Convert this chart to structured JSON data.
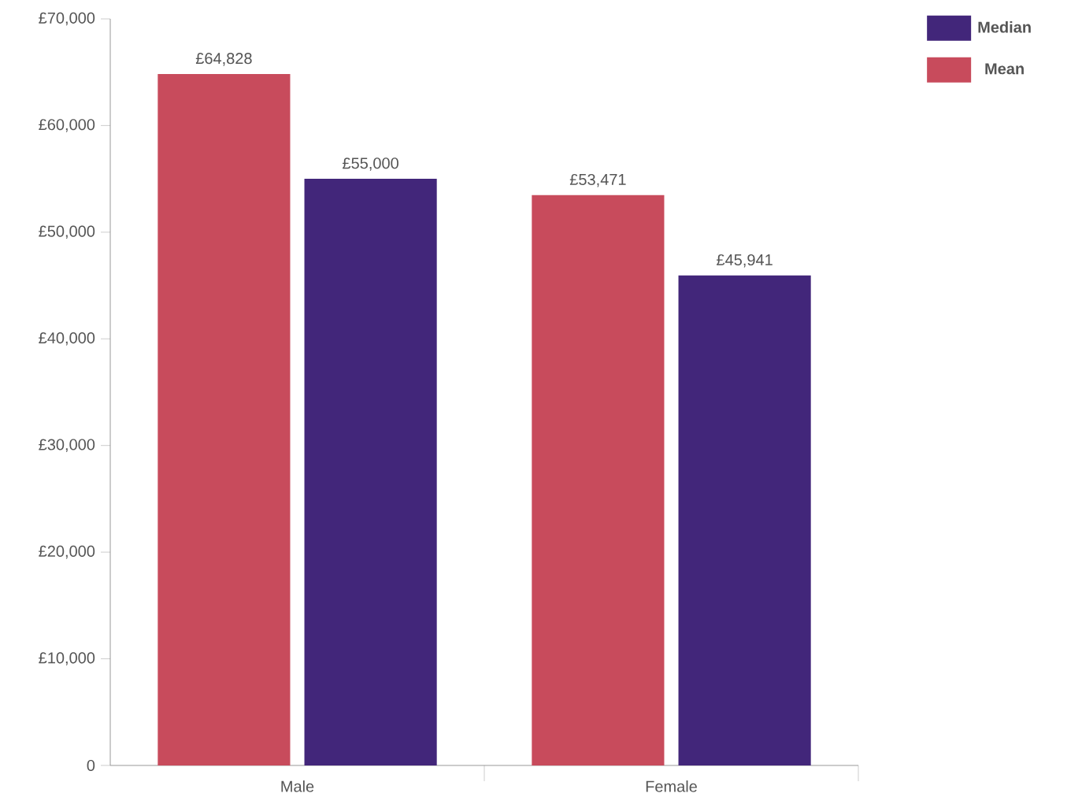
{
  "chart_data": {
    "type": "bar",
    "categories": [
      "Male",
      "Female"
    ],
    "series": [
      {
        "name": "Mean",
        "color": "#c84b5c",
        "values": [
          64828,
          53471
        ],
        "value_labels": [
          "£64,828",
          "£53,471"
        ]
      },
      {
        "name": "Median",
        "color": "#42267a",
        "values": [
          55000,
          45941
        ],
        "value_labels": [
          "£55,000",
          "£45,941"
        ]
      }
    ],
    "ylim": [
      0,
      70000
    ],
    "yticks": [
      0,
      {
        "value": 10000,
        "label": "£10,000"
      },
      {
        "value": 20000,
        "label": "£20,000"
      },
      {
        "value": 30000,
        "label": "£30,000"
      },
      {
        "value": 40000,
        "label": "£40,000"
      },
      {
        "value": 50000,
        "label": "£50,000"
      },
      {
        "value": 60000,
        "label": "£60,000"
      },
      {
        "value": 70000,
        "label": "£70,000"
      }
    ],
    "grid": false,
    "legend": "top right"
  }
}
